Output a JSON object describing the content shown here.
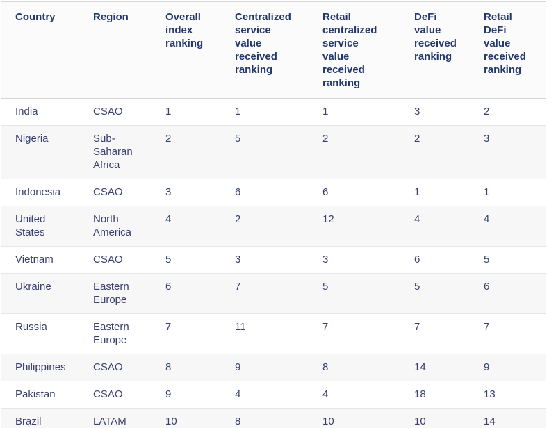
{
  "page": {
    "background": "#ffffff"
  },
  "colors": {
    "header_text": "#24386d",
    "body_text": "#39406e",
    "stripe_row_bg": "#f7f7f8",
    "header_bg": "#fbfbfb",
    "top_border": "#d6d6d8",
    "header_border": "#d4d4d6",
    "row_border": "#e6e6e8"
  },
  "table": {
    "columns": [
      {
        "id": "country",
        "label": "Country"
      },
      {
        "id": "region",
        "label": "Region"
      },
      {
        "id": "overall-index-ranking",
        "label": "Overall\nindex\nranking"
      },
      {
        "id": "centralized-service-value-received-ranking",
        "label": "Centralized\nservice\nvalue\nreceived\nranking"
      },
      {
        "id": "retail-centralized-service-value-received-ranking",
        "label": "Retail\ncentralized\nservice\nvalue\nreceived\nranking"
      },
      {
        "id": "defi-value-received-ranking",
        "label": "DeFi\nvalue\nreceived\nranking"
      },
      {
        "id": "retail-defi-value-received-ranking",
        "label": "Retail\nDeFi\nvalue\nreceived\nranking"
      }
    ],
    "rows": [
      {
        "cells": [
          "India",
          "CSAO",
          "1",
          "1",
          "1",
          "3",
          "2"
        ]
      },
      {
        "cells": [
          "Nigeria",
          "Sub-\nSaharan\nAfrica",
          "2",
          "5",
          "2",
          "2",
          "3"
        ]
      },
      {
        "cells": [
          "Indonesia",
          "CSAO",
          "3",
          "6",
          "6",
          "1",
          "1"
        ]
      },
      {
        "cells": [
          "United\nStates",
          "North\nAmerica",
          "4",
          "2",
          "12",
          "4",
          "4"
        ]
      },
      {
        "cells": [
          "Vietnam",
          "CSAO",
          "5",
          "3",
          "3",
          "6",
          "5"
        ]
      },
      {
        "cells": [
          "Ukraine",
          "Eastern\nEurope",
          "6",
          "7",
          "5",
          "5",
          "6"
        ]
      },
      {
        "cells": [
          "Russia",
          "Eastern\nEurope",
          "7",
          "11",
          "7",
          "7",
          "7"
        ]
      },
      {
        "cells": [
          "Philippines",
          "CSAO",
          "8",
          "9",
          "8",
          "14",
          "9"
        ]
      },
      {
        "cells": [
          "Pakistan",
          "CSAO",
          "9",
          "4",
          "4",
          "18",
          "13"
        ]
      },
      {
        "cells": [
          "Brazil",
          "LATAM",
          "10",
          "8",
          "10",
          "10",
          "14"
        ]
      }
    ]
  }
}
